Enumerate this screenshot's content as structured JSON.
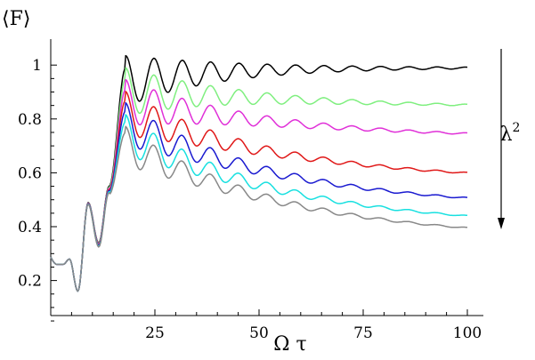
{
  "chart_data": {
    "type": "line",
    "ylabel": "⟨F⟩",
    "xlabel": "Ω τ",
    "arrow_label": "λ",
    "arrow_label_sup": "2",
    "xlim": [
      0,
      100
    ],
    "ylim": [
      0.07,
      1.07
    ],
    "x_ticks": [
      25,
      50,
      75,
      100
    ],
    "y_ticks": [
      0.2,
      0.4,
      0.6,
      0.8,
      1.0
    ],
    "x_tick_labels": [
      "25",
      "50",
      "75",
      "100"
    ],
    "y_tick_labels": [
      "0.2",
      "0.4",
      "0.6",
      "0.8",
      "1"
    ],
    "grid": false,
    "series": [
      {
        "color": "#000000",
        "end": 0.99,
        "decay": 0.0,
        "amp": 0.045
      },
      {
        "color": "#7fef7f",
        "end": 0.84,
        "decay": 0.06,
        "amp": 0.04
      },
      {
        "color": "#e030d8",
        "end": 0.725,
        "decay": 0.1,
        "amp": 0.036
      },
      {
        "color": "#e01818",
        "end": 0.565,
        "decay": 0.16,
        "amp": 0.032
      },
      {
        "color": "#1a1ad0",
        "end": 0.465,
        "decay": 0.19,
        "amp": 0.03
      },
      {
        "color": "#18e0e0",
        "end": 0.395,
        "decay": 0.21,
        "amp": 0.026
      },
      {
        "color": "#888888",
        "end": 0.35,
        "decay": 0.22,
        "amp": 0.022
      }
    ]
  }
}
